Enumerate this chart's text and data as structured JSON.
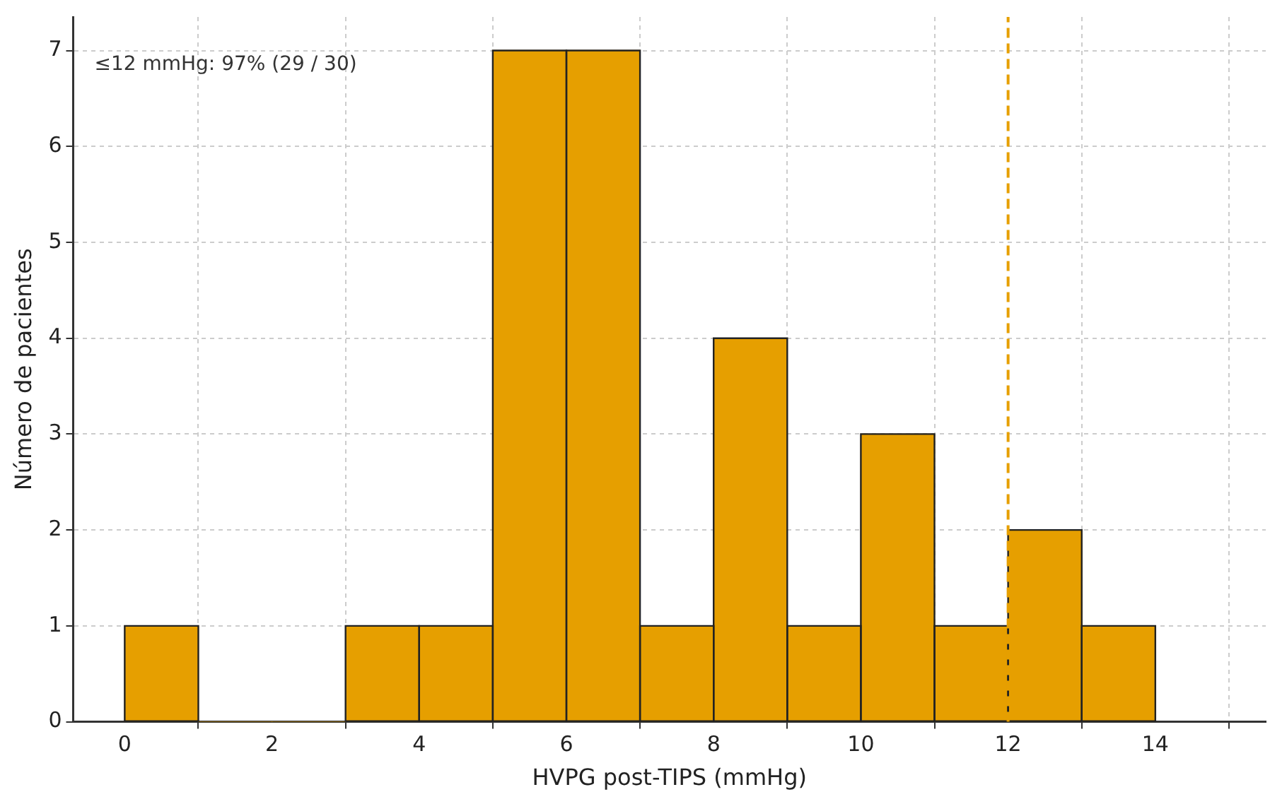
{
  "chart_data": {
    "type": "histogram",
    "xlabel": "HVPG post-TIPS (mmHg)",
    "ylabel": "Número de pacientes",
    "bins": [
      0,
      1,
      2,
      3,
      4,
      5,
      6,
      7,
      8,
      9,
      10,
      11,
      12,
      13,
      14
    ],
    "values": [
      1,
      0,
      0,
      1,
      1,
      7,
      7,
      1,
      4,
      1,
      3,
      1,
      2,
      1
    ],
    "color": "#e69f00",
    "xlim": [
      -0.7,
      15.5
    ],
    "xticks": [
      0,
      2,
      4,
      6,
      8,
      10,
      12,
      14
    ],
    "ylim": [
      0,
      7.35
    ],
    "yticks": [
      0,
      1,
      2,
      3,
      4,
      5,
      6,
      7
    ],
    "grid": true,
    "legend": false,
    "ref_lines": [
      {
        "axis": "x",
        "value": 12,
        "color": "#e69f00",
        "line_style": "dashed"
      }
    ],
    "annotations": [
      "≤12 mmHg: 97% (29 / 30)"
    ]
  }
}
